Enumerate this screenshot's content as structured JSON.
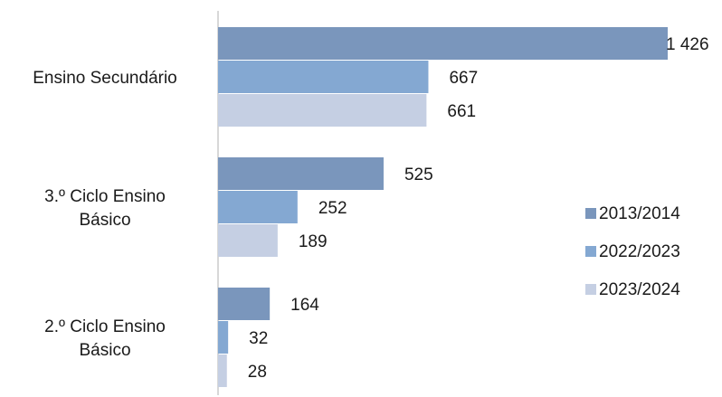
{
  "chart_data": {
    "type": "bar",
    "orientation": "horizontal",
    "categories": [
      "Ensino Secundário",
      "3.º Ciclo Ensino Básico",
      "2.º Ciclo Ensino Básico"
    ],
    "category_lines": [
      [
        "Ensino Secundário"
      ],
      [
        "3.º Ciclo Ensino",
        "Básico"
      ],
      [
        "2.º Ciclo Ensino",
        "Básico"
      ]
    ],
    "series": [
      {
        "name": "2013/2014",
        "values": [
          1426,
          525,
          164
        ],
        "labels": [
          "1 426",
          "525",
          "164"
        ],
        "color": "#7a96bc"
      },
      {
        "name": "2022/2023",
        "values": [
          667,
          252,
          32
        ],
        "labels": [
          "667",
          "252",
          "32"
        ],
        "color": "#84a8d2"
      },
      {
        "name": "2023/2024",
        "values": [
          661,
          189,
          28
        ],
        "labels": [
          "661",
          "189",
          "28"
        ],
        "color": "#c5cfe3"
      }
    ],
    "xlim": [
      0,
      1426
    ],
    "grid": false,
    "legend": "right"
  }
}
